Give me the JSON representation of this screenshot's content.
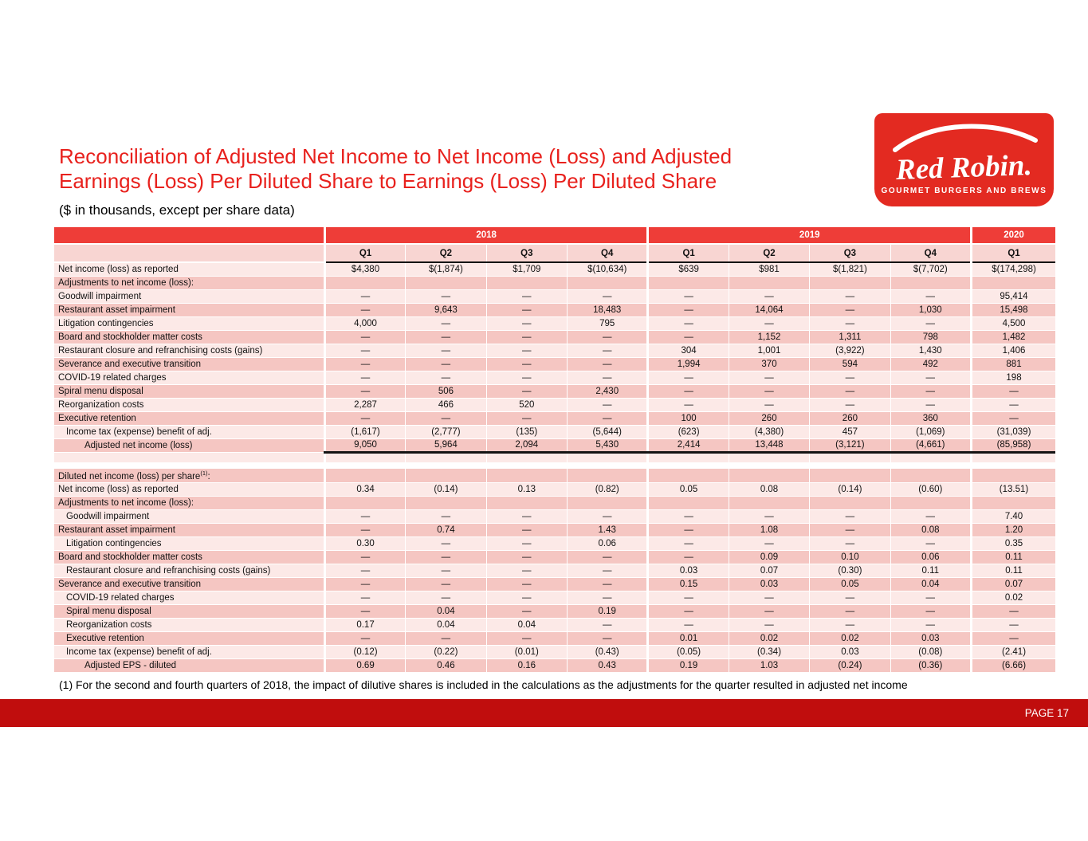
{
  "title": {
    "line1": "Reconciliation of Adjusted Net Income to Net Income (Loss) and Adjusted",
    "line2": "Earnings (Loss) Per Diluted Share to Earnings (Loss) Per Diluted Share"
  },
  "subtitle": "($ in thousands, except per share data)",
  "logo": {
    "brand": "Red Robin.",
    "tagline": "GOURMET BURGERS AND BREWS"
  },
  "footnote": "(1) For the second and fourth quarters of 2018, the impact of dilutive shares is included in the calculations as the adjustments for the quarter resulted in adjusted net income",
  "footer": {
    "page_label": "PAGE 17"
  },
  "colors": {
    "title_red": "#e8211d",
    "header_band_red": "#ee3d38",
    "logo_red": "#e32a21",
    "footer_bar_red": "#c00d0d",
    "row_light_pink": "#fce9e7",
    "row_dark_pink": "#f5c6c2",
    "quarter_header_pink": "#f8d5d2"
  },
  "table": {
    "year_groups": [
      {
        "label": "2018",
        "cols": 4
      },
      {
        "label": "2019",
        "cols": 4
      },
      {
        "label": "2020",
        "cols": 1
      }
    ],
    "quarter_headers": [
      "Q1",
      "Q2",
      "Q3",
      "Q4",
      "Q1",
      "Q2",
      "Q3",
      "Q4",
      "Q1"
    ],
    "sections": [
      {
        "first_shade": "light",
        "rows": [
          {
            "label": "Net income (loss) as reported",
            "indent": 0,
            "values": [
              "$4,380",
              "$(1,874)",
              "$1,709",
              "$(10,634)",
              "$639",
              "$981",
              "$(1,821)",
              "$(7,702)",
              "$(174,298)"
            ]
          },
          {
            "label": "Adjustments to net income (loss):",
            "indent": 0,
            "values": [
              "",
              "",
              "",
              "",
              "",
              "",
              "",
              "",
              ""
            ]
          },
          {
            "label": "Goodwill impairment",
            "indent": 0,
            "values": [
              "—",
              "—",
              "—",
              "—",
              "—",
              "—",
              "—",
              "—",
              "95,414"
            ]
          },
          {
            "label": "Restaurant asset impairment",
            "indent": 0,
            "values": [
              "—",
              "9,643",
              "—",
              "18,483",
              "—",
              "14,064",
              "—",
              "1,030",
              "15,498"
            ]
          },
          {
            "label": "Litigation contingencies",
            "indent": 0,
            "values": [
              "4,000",
              "—",
              "—",
              "795",
              "—",
              "—",
              "—",
              "—",
              "4,500"
            ]
          },
          {
            "label": "Board and stockholder matter costs",
            "indent": 0,
            "values": [
              "—",
              "—",
              "—",
              "—",
              "—",
              "1,152",
              "1,311",
              "798",
              "1,482"
            ]
          },
          {
            "label": "Restaurant closure and refranchising costs (gains)",
            "indent": 0,
            "values": [
              "—",
              "—",
              "—",
              "—",
              "304",
              "1,001",
              "(3,922)",
              "1,430",
              "1,406"
            ]
          },
          {
            "label": "Severance and executive transition",
            "indent": 0,
            "values": [
              "—",
              "—",
              "—",
              "—",
              "1,994",
              "370",
              "594",
              "492",
              "881"
            ]
          },
          {
            "label": "COVID-19 related charges",
            "indent": 0,
            "values": [
              "—",
              "—",
              "—",
              "—",
              "—",
              "—",
              "—",
              "—",
              "198"
            ]
          },
          {
            "label": "Spiral menu disposal",
            "indent": 0,
            "values": [
              "—",
              "506",
              "—",
              "2,430",
              "—",
              "—",
              "—",
              "—",
              "—"
            ]
          },
          {
            "label": "Reorganization costs",
            "indent": 0,
            "values": [
              "2,287",
              "466",
              "520",
              "—",
              "—",
              "—",
              "—",
              "—",
              "—"
            ]
          },
          {
            "label": "Executive retention",
            "indent": 0,
            "values": [
              "—",
              "—",
              "—",
              "—",
              "100",
              "260",
              "260",
              "360",
              "—"
            ]
          },
          {
            "label": "Income tax (expense) benefit of adj.",
            "indent": 1,
            "values": [
              "(1,617)",
              "(2,777)",
              "(135)",
              "(5,644)",
              "(623)",
              "(4,380)",
              "457",
              "(1,069)",
              "(31,039)"
            ]
          },
          {
            "label": "Adjusted net income (loss)",
            "indent": 2,
            "thick_bottom": true,
            "values": [
              "9,050",
              "5,964",
              "2,094",
              "5,430",
              "2,414",
              "13,448",
              "(3,121)",
              "(4,661)",
              "(85,958)"
            ]
          }
        ]
      },
      {
        "first_shade": "dark",
        "rows": [
          {
            "label": "Diluted net income (loss) per share",
            "sup": "(1)",
            "suffix": ":",
            "indent": 0,
            "values": [
              "",
              "",
              "",
              "",
              "",
              "",
              "",
              "",
              ""
            ]
          },
          {
            "label": "Net income (loss) as reported",
            "indent": 0,
            "values": [
              "0.34",
              "(0.14)",
              "0.13",
              "(0.82)",
              "0.05",
              "0.08",
              "(0.14)",
              "(0.60)",
              "(13.51)"
            ]
          },
          {
            "label": "Adjustments to net income (loss):",
            "indent": 0,
            "values": [
              "",
              "",
              "",
              "",
              "",
              "",
              "",
              "",
              ""
            ]
          },
          {
            "label": "Goodwill impairment",
            "indent": 1,
            "values": [
              "—",
              "—",
              "—",
              "—",
              "—",
              "—",
              "—",
              "—",
              "7.40"
            ]
          },
          {
            "label": "Restaurant asset impairment",
            "indent": 0,
            "values": [
              "—",
              "0.74",
              "—",
              "1.43",
              "—",
              "1.08",
              "—",
              "0.08",
              "1.20"
            ]
          },
          {
            "label": "Litigation contingencies",
            "indent": 1,
            "values": [
              "0.30",
              "—",
              "—",
              "0.06",
              "—",
              "—",
              "—",
              "—",
              "0.35"
            ]
          },
          {
            "label": "Board and stockholder matter costs",
            "indent": 0,
            "values": [
              "—",
              "—",
              "—",
              "—",
              "—",
              "0.09",
              "0.10",
              "0.06",
              "0.11"
            ]
          },
          {
            "label": "Restaurant closure and refranchising costs (gains)",
            "indent": 1,
            "values": [
              "—",
              "—",
              "—",
              "—",
              "0.03",
              "0.07",
              "(0.30)",
              "0.11",
              "0.11"
            ]
          },
          {
            "label": "Severance and executive transition",
            "indent": 0,
            "values": [
              "—",
              "—",
              "—",
              "—",
              "0.15",
              "0.03",
              "0.05",
              "0.04",
              "0.07"
            ]
          },
          {
            "label": "COVID-19 related charges",
            "indent": 1,
            "values": [
              "—",
              "—",
              "—",
              "—",
              "—",
              "—",
              "—",
              "—",
              "0.02"
            ]
          },
          {
            "label": "Spiral menu disposal",
            "indent": 1,
            "values": [
              "—",
              "0.04",
              "—",
              "0.19",
              "—",
              "—",
              "—",
              "—",
              "—"
            ]
          },
          {
            "label": "Reorganization costs",
            "indent": 1,
            "values": [
              "0.17",
              "0.04",
              "0.04",
              "—",
              "—",
              "—",
              "—",
              "—",
              "—"
            ]
          },
          {
            "label": "Executive retention",
            "indent": 1,
            "values": [
              "—",
              "—",
              "—",
              "—",
              "0.01",
              "0.02",
              "0.02",
              "0.03",
              "—"
            ]
          },
          {
            "label": "Income tax (expense) benefit of adj.",
            "indent": 1,
            "values": [
              "(0.12)",
              "(0.22)",
              "(0.01)",
              "(0.43)",
              "(0.05)",
              "(0.34)",
              "0.03",
              "(0.08)",
              "(2.41)"
            ]
          },
          {
            "label": "Adjusted EPS - diluted",
            "indent": 2,
            "values": [
              "0.69",
              "0.46",
              "0.16",
              "0.43",
              "0.19",
              "1.03",
              "(0.24)",
              "(0.36)",
              "(6.66)"
            ]
          }
        ]
      }
    ]
  }
}
